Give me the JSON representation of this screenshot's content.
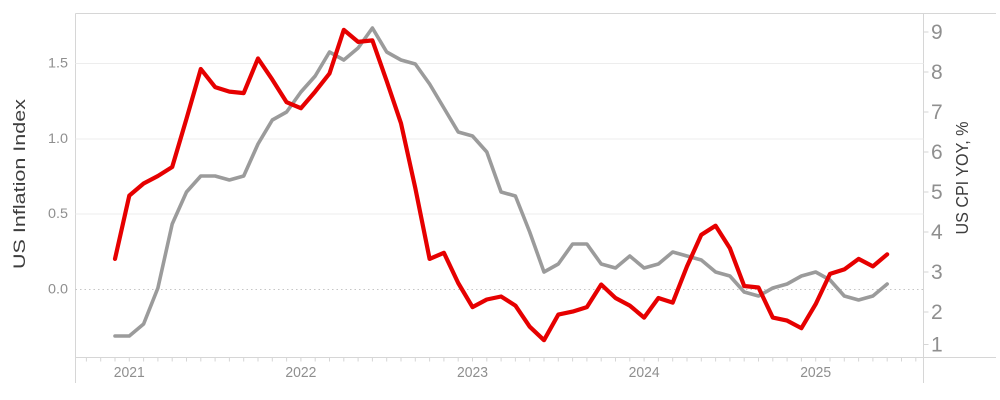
{
  "chart_data": {
    "type": "line",
    "title": "",
    "legend": "none",
    "grid": {
      "solid_at": [
        0.5,
        1.0,
        1.5
      ],
      "dotted_at": [
        0.0
      ],
      "vertical": "off"
    },
    "x_months": [
      "2020-12",
      "2021-01",
      "2021-02",
      "2021-03",
      "2021-04",
      "2021-05",
      "2021-06",
      "2021-07",
      "2021-08",
      "2021-09",
      "2021-10",
      "2021-11",
      "2021-12",
      "2022-01",
      "2022-02",
      "2022-03",
      "2022-04",
      "2022-05",
      "2022-06",
      "2022-07",
      "2022-08",
      "2022-09",
      "2022-10",
      "2022-11",
      "2022-12",
      "2023-01",
      "2023-02",
      "2023-03",
      "2023-04",
      "2023-05",
      "2023-06",
      "2023-07",
      "2023-08",
      "2023-09",
      "2023-10",
      "2023-11",
      "2023-12",
      "2024-01",
      "2024-02",
      "2024-03",
      "2024-04",
      "2024-05",
      "2024-06",
      "2024-07",
      "2024-08",
      "2024-09",
      "2024-10",
      "2024-11",
      "2024-12",
      "2025-01",
      "2025-02",
      "2025-03",
      "2025-04",
      "2025-05",
      "2025-06"
    ],
    "x_year_ticks": [
      "2021",
      "2022",
      "2023",
      "2024",
      "2025"
    ],
    "series": [
      {
        "name": "US CPI YOY, %",
        "yaxis": "right",
        "color": "#9b9b9b",
        "values": [
          1.4,
          1.4,
          1.7,
          2.6,
          4.2,
          5.0,
          5.4,
          5.4,
          5.3,
          5.4,
          6.2,
          6.8,
          7.0,
          7.5,
          7.9,
          8.5,
          8.3,
          8.6,
          9.1,
          8.5,
          8.3,
          8.2,
          7.7,
          7.1,
          6.5,
          6.4,
          6.0,
          5.0,
          4.9,
          4.0,
          3.0,
          3.2,
          3.7,
          3.7,
          3.2,
          3.1,
          3.4,
          3.1,
          3.2,
          3.5,
          3.4,
          3.3,
          3.0,
          2.9,
          2.5,
          2.4,
          2.6,
          2.7,
          2.9,
          3.0,
          2.8,
          2.4,
          2.3,
          2.4,
          2.7
        ]
      },
      {
        "name": "US Inflation Index",
        "yaxis": "left",
        "color": "#e60000",
        "values": [
          0.2,
          0.62,
          0.7,
          0.75,
          0.81,
          1.13,
          1.46,
          1.34,
          1.31,
          1.3,
          1.53,
          1.39,
          1.24,
          1.2,
          1.31,
          1.43,
          1.72,
          1.64,
          1.65,
          1.38,
          1.1,
          0.67,
          0.2,
          0.24,
          0.04,
          -0.12,
          -0.07,
          -0.05,
          -0.11,
          -0.25,
          -0.34,
          -0.17,
          -0.15,
          -0.12,
          0.03,
          -0.06,
          -0.11,
          -0.19,
          -0.06,
          -0.09,
          0.15,
          0.36,
          0.42,
          0.27,
          0.02,
          0.01,
          -0.19,
          -0.21,
          -0.26,
          -0.1,
          0.1,
          0.13,
          0.2,
          0.15,
          0.23
        ]
      }
    ],
    "left_axis": {
      "title": "US Inflation Index",
      "tick_labels": [
        "0.0",
        "0.5",
        "1.0",
        "1.5"
      ],
      "tick_values": [
        0.0,
        0.5,
        1.0,
        1.5
      ],
      "range": [
        -0.45,
        1.83
      ]
    },
    "right_axis": {
      "title": "US CPI YOY, %",
      "tick_labels": [
        "1",
        "2",
        "3",
        "4",
        "5",
        "6",
        "7",
        "8",
        "9"
      ],
      "tick_values": [
        1,
        2,
        3,
        4,
        5,
        6,
        7,
        8,
        9
      ],
      "range": [
        0.88,
        9.48
      ]
    },
    "colors": {
      "inflation_line": "#e60000",
      "cpi_line": "#9b9b9b",
      "grid_line": "#ededed",
      "zero_dotted_line": "#c6c6c6",
      "axis_line": "#d6d6d6",
      "tick_text": "#8f8f8f",
      "axis_title_text": "#3d3d3d",
      "background": "#ffffff"
    }
  }
}
